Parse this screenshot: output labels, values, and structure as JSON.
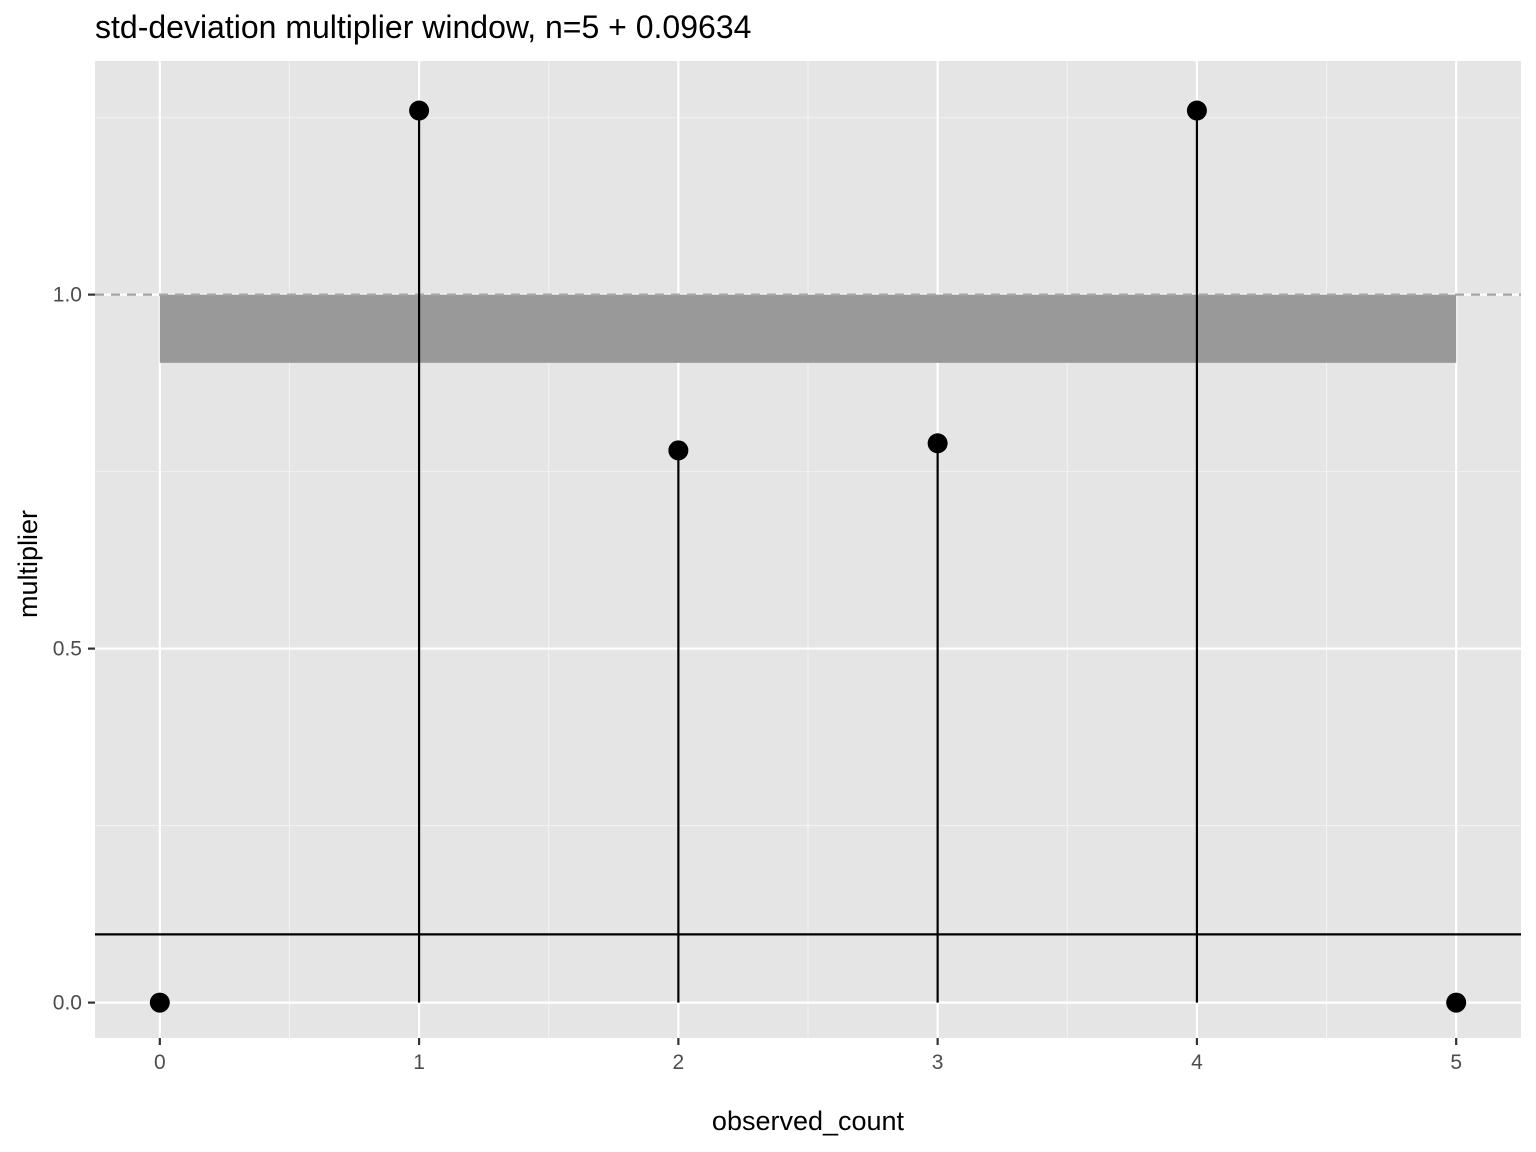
{
  "chart_data": {
    "type": "lollipop",
    "title": "std-deviation multiplier window, n=5 + 0.09634",
    "xlabel": "observed_count",
    "ylabel": "multiplier",
    "x": [
      0,
      1,
      2,
      3,
      4,
      5
    ],
    "y": [
      0.0,
      1.26,
      0.78,
      0.79,
      1.26,
      0.0
    ],
    "xlim": [
      -0.25,
      5.25
    ],
    "ylim": [
      -0.05,
      1.33
    ],
    "x_ticks": [
      0,
      1,
      2,
      3,
      4,
      5
    ],
    "y_ticks": [
      0.0,
      0.5,
      1.0
    ],
    "x_tick_labels": [
      "0",
      "1",
      "2",
      "3",
      "4",
      "5"
    ],
    "y_tick_labels": [
      "0.0",
      "0.5",
      "1.0"
    ],
    "band": {
      "x": [
        0,
        5
      ],
      "y": [
        0.90366,
        1.0
      ],
      "color": "#999999"
    },
    "dashed_hline": {
      "y": 1.0,
      "color": "#a6a6a6"
    },
    "solid_hline": {
      "y": 0.09634,
      "color": "#000000"
    },
    "grid": true,
    "legend": "none",
    "colors": {
      "panel_background": "#e5e5e5",
      "grid_major": "#ffffff",
      "grid_minor": "#f2f2f2",
      "points": "#000000",
      "stems": "#000000"
    }
  }
}
